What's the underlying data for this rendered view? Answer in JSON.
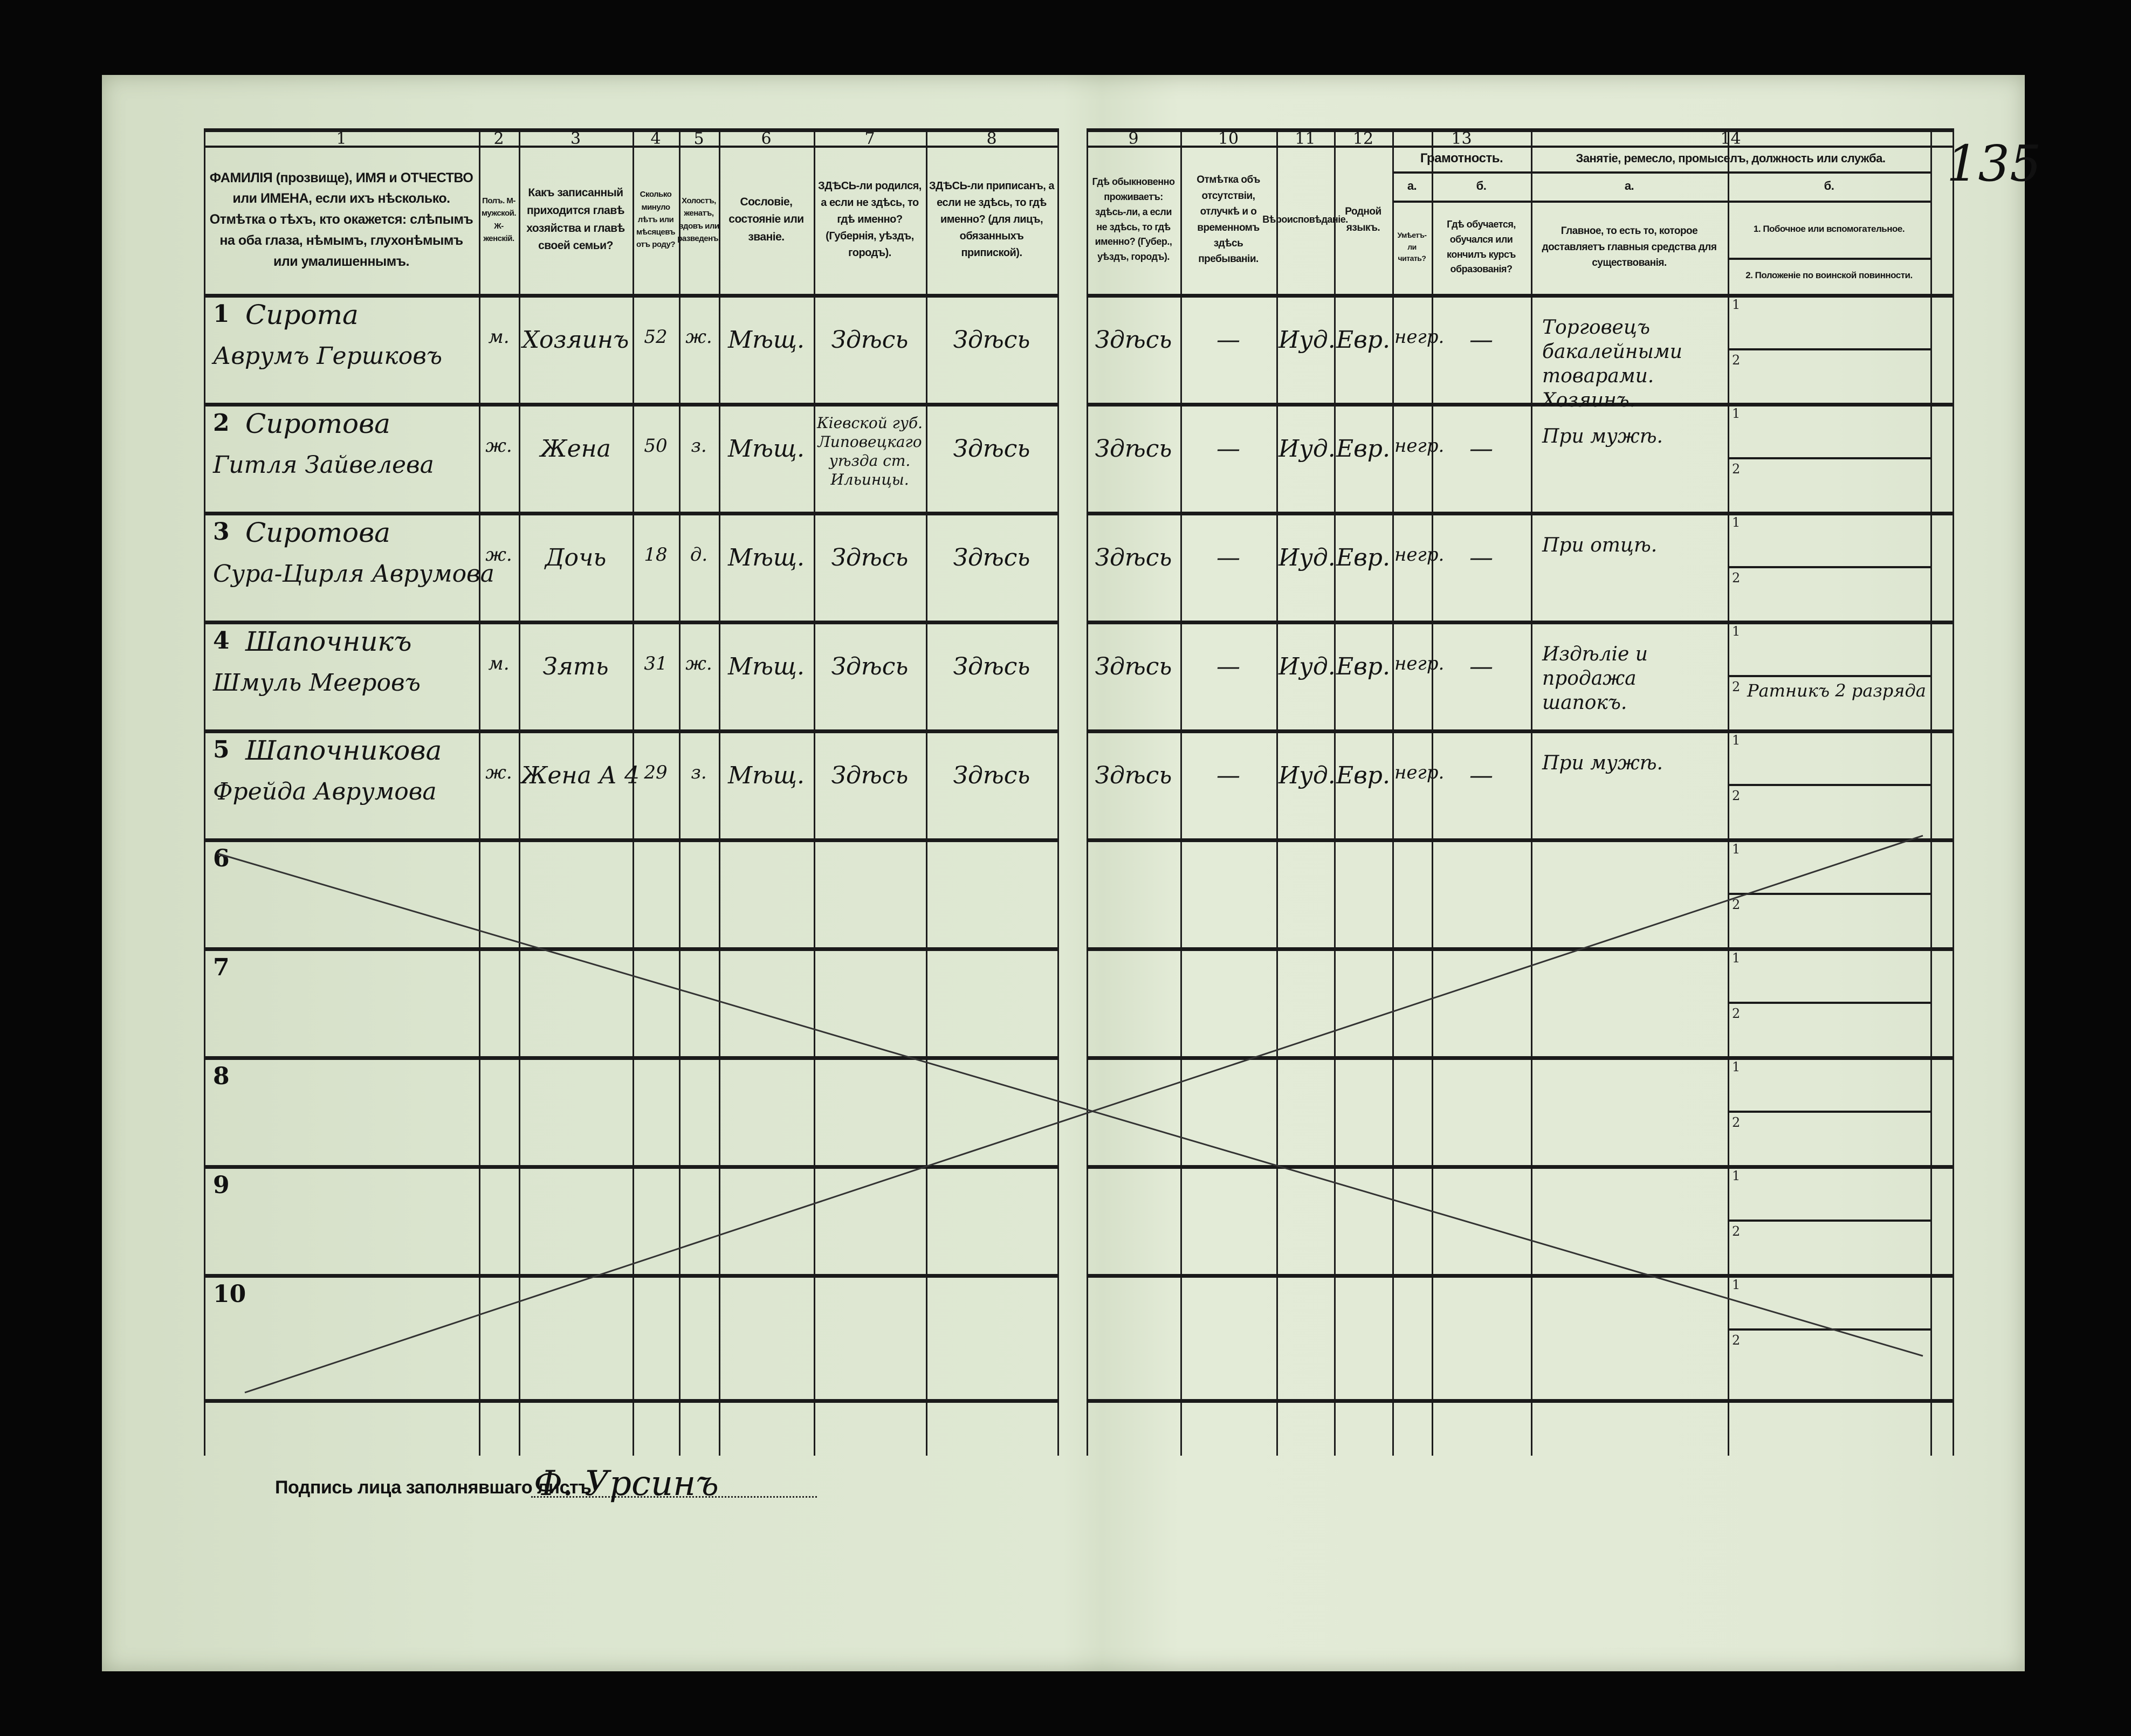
{
  "page_number": "135",
  "header": {
    "numbers": [
      "1",
      "2",
      "3",
      "4",
      "5",
      "6",
      "7",
      "8",
      "9",
      "10",
      "11",
      "12",
      "13",
      "14"
    ],
    "col1": "ФАМИЛІЯ (прозвище), ИМЯ и ОТЧЕСТВО или ИМЕНА, если ихъ нѣсколько. Отмѣтка о тѣхъ, кто окажется: слѣпымъ на оба глаза, нѣмымъ, глухонѣмымъ или умалишеннымъ.",
    "col2": "Полъ. М-мужской. Ж-женскій.",
    "col3": "Какъ записанный приходится главѣ хозяйства и главѣ своей семьи?",
    "col4": "Сколько минуло лѣтъ или мѣсяцевъ отъ роду?",
    "col5": "Холостъ, женатъ, вдовъ или разведенъ.",
    "col6": "Сословіе, состояніе или званіе.",
    "col7": "ЗДѢСЬ-ли родился, а если не здѣсь, то гдѣ именно? (Губернія, уѣздъ, городъ).",
    "col8": "ЗДѢСЬ-ли приписанъ, а если не здѣсь, то гдѣ именно? (для лицъ, обязанныхъ припиской).",
    "col9": "Гдѣ обыкновенно проживаетъ: здѣсь-ли, а если не здѣсь, то гдѣ именно? (Губер., уѣздъ, городъ).",
    "col10": "Отмѣтка объ отсутствіи, отлучкѣ и о временномъ здѣсь пребываніи.",
    "col11": "Вѣроисповѣданіе.",
    "col12": "Родной языкъ.",
    "col13": "Грамотность.",
    "col13a_letter": "а.",
    "col13b_letter": "б.",
    "col13a": "Умѣетъ-ли читать?",
    "col13b": "Гдѣ обучается, обучался или кончилъ курсъ образованія?",
    "col14": "Занятіе, ремесло, промыселъ, должность или служба.",
    "col14a_letter": "а.",
    "col14b_letter": "б.",
    "col14a": "Главное, то есть то, которое доставляетъ главныя средства для существованія.",
    "col14b_1": "1. Побочное или вспомогательное.",
    "col14b_2": "2. Положеніе по воинской повинности."
  },
  "sub_labels": [
    "1",
    "2"
  ],
  "rows": [
    {
      "number": "1",
      "surname": "Сирота",
      "given": "Аврумъ Гершковъ",
      "sex": "м.",
      "relation": "Хозяинъ",
      "age": "52",
      "marital": "ж.",
      "estate": "Мѣщ.",
      "birthplace": "Здѣсь",
      "registered": "Здѣсь",
      "residence": "Здѣсь",
      "absence": "—",
      "religion": "Иуд.",
      "language": "Евр.",
      "literacy": "негр.",
      "schooling": "—",
      "occupation": "Торговецъ бакалейными товарами. Хозяинъ.",
      "side": "",
      "military": ""
    },
    {
      "number": "2",
      "surname": "Сиротова",
      "given": "Гитля Зайвелева",
      "sex": "ж.",
      "relation": "Жена",
      "age": "50",
      "marital": "з.",
      "estate": "Мѣщ.",
      "birthplace": "Кіевской губ. Липовецкаго уѣзда ст. Ильинцы.",
      "registered": "Здѣсь",
      "residence": "Здѣсь",
      "absence": "—",
      "religion": "Иуд.",
      "language": "Евр.",
      "literacy": "негр.",
      "schooling": "—",
      "occupation": "При мужѣ.",
      "side": "",
      "military": ""
    },
    {
      "number": "3",
      "surname": "Сиротова",
      "given": "Сура-Цирля Аврумова",
      "sex": "ж.",
      "relation": "Дочь",
      "age": "18",
      "marital": "д.",
      "estate": "Мѣщ.",
      "birthplace": "Здѣсь",
      "registered": "Здѣсь",
      "residence": "Здѣсь",
      "absence": "—",
      "religion": "Иуд.",
      "language": "Евр.",
      "literacy": "негр.",
      "schooling": "—",
      "occupation": "При отцѣ.",
      "side": "",
      "military": ""
    },
    {
      "number": "4",
      "surname": "Шапочникъ",
      "given": "Шмуль Мееровъ",
      "sex": "м.",
      "relation": "Зять",
      "age": "31",
      "marital": "ж.",
      "estate": "Мѣщ.",
      "birthplace": "Здѣсь",
      "registered": "Здѣсь",
      "residence": "Здѣсь",
      "absence": "—",
      "religion": "Иуд.",
      "language": "Евр.",
      "literacy": "негр.",
      "schooling": "—",
      "occupation": "Издѣліе и продажа шапокъ.",
      "side": "",
      "military": "Ратникъ 2 разряда"
    },
    {
      "number": "5",
      "surname": "Шапочникова",
      "given": "Фрейда Аврумова",
      "sex": "ж.",
      "relation": "Жена А 4",
      "age": "29",
      "marital": "з.",
      "estate": "Мѣщ.",
      "birthplace": "Здѣсь",
      "registered": "Здѣсь",
      "residence": "Здѣсь",
      "absence": "—",
      "religion": "Иуд.",
      "language": "Евр.",
      "literacy": "негр.",
      "schooling": "—",
      "occupation": "При мужѣ.",
      "side": "",
      "military": ""
    },
    {
      "number": "6"
    },
    {
      "number": "7"
    },
    {
      "number": "8"
    },
    {
      "number": "9"
    },
    {
      "number": "10"
    }
  ],
  "signature": {
    "label": "Подпись лица заполнявшаго листъ",
    "name": "Ф. Урсинъ"
  },
  "colors": {
    "paper": "#dfe8d3",
    "ink": "#141414",
    "background": "#060606"
  }
}
